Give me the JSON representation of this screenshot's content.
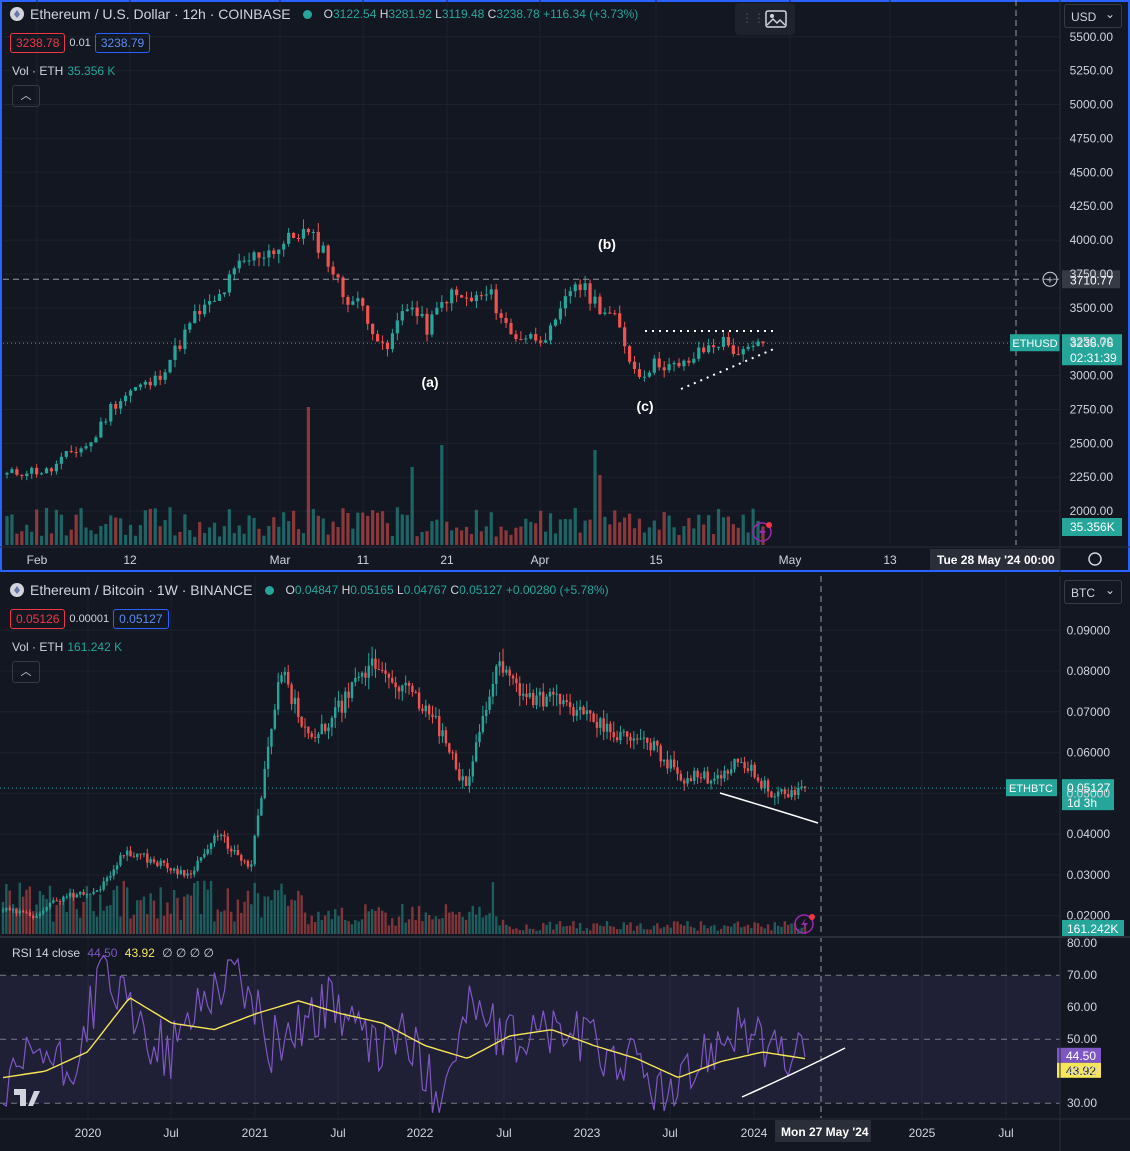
{
  "top": {
    "symbol": "Ethereum / U.S. Dollar · 12h · COINBASE",
    "ohlc": {
      "o": "3122.54",
      "h": "3281.92",
      "l": "3119.48",
      "c": "3238.78",
      "chg": "+116.34 (+3.73%)"
    },
    "bid": "3238.78",
    "spread": "0.01",
    "ask": "3238.79",
    "vol_label": "Vol · ETH",
    "vol_value": "35.356 K",
    "currency": "USD",
    "ticker_tag": "ETHUSD",
    "price_tag": "3238.78",
    "countdown": "02:31:39",
    "crosshair_price": "3710.77",
    "vol_tag": "35.356K",
    "date_tag": "Tue 28 May '24",
    "time_tag": "00:00",
    "x_ticks": [
      "Feb",
      "12",
      "Mar",
      "11",
      "21",
      "Apr",
      "15",
      "May",
      "13"
    ],
    "annotations": [
      "(a)",
      "(b)",
      "(c)"
    ]
  },
  "bottom": {
    "symbol": "Ethereum / Bitcoin · 1W · BINANCE",
    "ohlc": {
      "o": "0.04847",
      "h": "0.05165",
      "l": "0.04767",
      "c": "0.05127",
      "chg": "+0.00280 (+5.78%)"
    },
    "bid": "0.05126",
    "spread": "0.00001",
    "ask": "0.05127",
    "vol_label": "Vol · ETH",
    "vol_value": "161.242 K",
    "currency": "BTC",
    "ticker_tag": "ETHBTC",
    "price_tag": "0.05127",
    "countdown": "1d 3h",
    "vol_tag": "161.242K",
    "date_tag": "Mon 27 May '24",
    "x_ticks": [
      "2020",
      "Jul",
      "2021",
      "Jul",
      "2022",
      "Jul",
      "2023",
      "Jul",
      "2024",
      "2025",
      "Jul"
    ],
    "rsi": {
      "label": "RSI 14 close",
      "value1": "44.50",
      "value2": "43.92",
      "nulls": "∅ ∅ ∅ ∅"
    }
  },
  "chart_data": [
    {
      "type": "candlestick",
      "title": "Ethereum / U.S. Dollar · 12h · COINBASE",
      "y_ticks": [
        "5500.00",
        "5250.00",
        "5000.00",
        "4750.00",
        "4500.00",
        "4250.00",
        "4000.00",
        "3750.00",
        "3500.00",
        "3250.00",
        "3000.00",
        "2750.00",
        "2500.00",
        "2250.00",
        "2000.00"
      ],
      "ylim": [
        1750,
        5550
      ],
      "price_path": [
        [
          "Jan 28",
          2270
        ],
        [
          "Feb 1",
          2300
        ],
        [
          "Feb 5",
          2290
        ],
        [
          "Feb 9",
          2430
        ],
        [
          "Feb 12",
          2500
        ],
        [
          "Feb 15",
          2780
        ],
        [
          "Feb 19",
          2900
        ],
        [
          "Feb 23",
          2950
        ],
        [
          "Feb 26",
          3180
        ],
        [
          "Mar 1",
          3450
        ],
        [
          "Mar 4",
          3550
        ],
        [
          "Mar 6",
          3800
        ],
        [
          "Mar 8",
          3900
        ],
        [
          "Mar 10",
          3950
        ],
        [
          "Mar 12",
          4070
        ],
        [
          "Mar 14",
          3950
        ],
        [
          "Mar 16",
          3600
        ],
        [
          "Mar 18",
          3500
        ],
        [
          "Mar 20",
          3150
        ],
        [
          "Mar 21",
          3550
        ],
        [
          "Mar 23",
          3350
        ],
        [
          "Mar 25",
          3600
        ],
        [
          "Mar 28",
          3550
        ],
        [
          "Mar 31",
          3600
        ],
        [
          "Apr 2",
          3300
        ],
        [
          "Apr 4",
          3280
        ],
        [
          "Apr 6",
          3320
        ],
        [
          "Apr 8",
          3700
        ],
        [
          "Apr 10",
          3550
        ],
        [
          "Apr 12",
          3400
        ],
        [
          "Apr 13",
          3000
        ],
        [
          "Apr 15",
          3100
        ],
        [
          "Apr 18",
          3050
        ],
        [
          "Apr 21",
          3170
        ],
        [
          "Apr 24",
          3260
        ],
        [
          "Apr 26",
          3150
        ],
        [
          "Apr 28",
          3238
        ]
      ],
      "volume_label": "Vol · ETH",
      "current_price": 3238.78
    },
    {
      "type": "candlestick",
      "title": "Ethereum / Bitcoin · 1W · BINANCE",
      "y_ticks": [
        "0.09000",
        "0.08000",
        "0.07000",
        "0.06000",
        "0.05000",
        "0.04000",
        "0.03000",
        "0.02000"
      ],
      "ylim": [
        0.0155,
        0.0935
      ],
      "price_path": [
        [
          "2019-10",
          0.0215
        ],
        [
          "2020-01",
          0.02
        ],
        [
          "2020-04",
          0.025
        ],
        [
          "2020-06",
          0.0255
        ],
        [
          "2020-08",
          0.036
        ],
        [
          "2020-10",
          0.033
        ],
        [
          "2021-01",
          0.03
        ],
        [
          "2021-03",
          0.04
        ],
        [
          "2021-04",
          0.031
        ],
        [
          "2021-05",
          0.08
        ],
        [
          "2021-07",
          0.062
        ],
        [
          "2021-09",
          0.072
        ],
        [
          "2021-11",
          0.082
        ],
        [
          "2022-01",
          0.076
        ],
        [
          "2022-03",
          0.068
        ],
        [
          "2022-06",
          0.051
        ],
        [
          "2022-08",
          0.082
        ],
        [
          "2022-10",
          0.074
        ],
        [
          "2022-12",
          0.073
        ],
        [
          "2023-03",
          0.068
        ],
        [
          "2023-06",
          0.064
        ],
        [
          "2023-09",
          0.062
        ],
        [
          "2023-11",
          0.054
        ],
        [
          "2024-01",
          0.054
        ],
        [
          "2024-03",
          0.058
        ],
        [
          "2024-04",
          0.049
        ],
        [
          "2024-05",
          0.05127
        ]
      ],
      "volume_label": "Vol · ETH",
      "current_price": 0.05127
    },
    {
      "type": "line",
      "title": "RSI 14 close",
      "y_ticks": [
        "80.00",
        "70.00",
        "60.00",
        "50.00",
        "40.00",
        "30.00"
      ],
      "ylim": [
        26,
        81
      ],
      "series": [
        {
          "name": "RSI",
          "values": [
            [
              "2019-10",
              30
            ],
            [
              "2020-02",
              47
            ],
            [
              "2020-04",
              38
            ],
            [
              "2020-07",
              72
            ],
            [
              "2020-09",
              54
            ],
            [
              "2020-12",
              45
            ],
            [
              "2021-02",
              64
            ],
            [
              "2021-05",
              72
            ],
            [
              "2021-07",
              48
            ],
            [
              "2021-09",
              56
            ],
            [
              "2021-11",
              62
            ],
            [
              "2022-01",
              46
            ],
            [
              "2022-03",
              52
            ],
            [
              "2022-06",
              32
            ],
            [
              "2022-08",
              62
            ],
            [
              "2022-10",
              48
            ],
            [
              "2022-12",
              53
            ],
            [
              "2023-03",
              52
            ],
            [
              "2023-06",
              46
            ],
            [
              "2023-09",
              42
            ],
            [
              "2023-11",
              30
            ],
            [
              "2024-02",
              46
            ],
            [
              "2024-03",
              56
            ],
            [
              "2024-04",
              45
            ],
            [
              "2024-05",
              44.5
            ]
          ]
        },
        {
          "name": "RSI-based MA",
          "values": [
            [
              "2019-10",
              38
            ],
            [
              "2020-01",
              40
            ],
            [
              "2020-04",
              46
            ],
            [
              "2020-07",
              63
            ],
            [
              "2020-10",
              55
            ],
            [
              "2021-01",
              53
            ],
            [
              "2021-04",
              58
            ],
            [
              "2021-07",
              62
            ],
            [
              "2021-10",
              58
            ],
            [
              "2022-01",
              55
            ],
            [
              "2022-04",
              48
            ],
            [
              "2022-07",
              44
            ],
            [
              "2022-10",
              51
            ],
            [
              "2023-01",
              53
            ],
            [
              "2023-04",
              48
            ],
            [
              "2023-08",
              44
            ],
            [
              "2023-11",
              38
            ],
            [
              "2024-02",
              43
            ],
            [
              "2024-04",
              46
            ],
            [
              "2024-05",
              43.92
            ]
          ]
        }
      ],
      "bands": [
        30,
        50,
        70
      ]
    }
  ]
}
